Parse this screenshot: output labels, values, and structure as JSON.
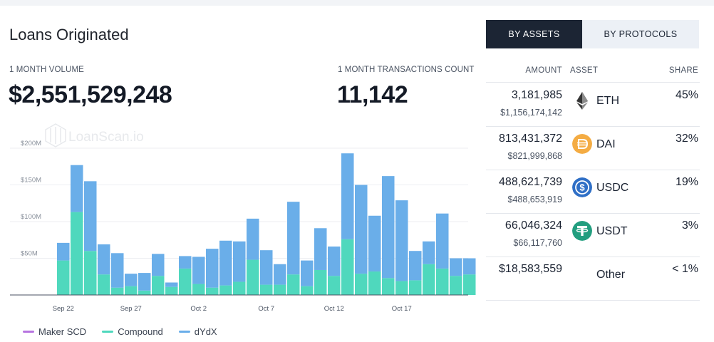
{
  "title": "Loans Originated",
  "stats": {
    "volume_label": "1 MONTH VOLUME",
    "volume_value": "$2,551,529,248",
    "tx_label": "1 MONTH TRANSACTIONS COUNT",
    "tx_value": "11,142"
  },
  "watermark": "LoanScan.io",
  "tabs": {
    "by_assets": "BY ASSETS",
    "by_protocols": "BY PROTOCOLS",
    "active": "by_assets"
  },
  "table": {
    "headers": {
      "amount": "AMOUNT",
      "asset": "ASSET",
      "share": "SHARE"
    },
    "rows": [
      {
        "amount": "3,181,985",
        "usd": "$1,156,174,142",
        "asset": "ETH",
        "icon": "eth-icon",
        "share": "45%"
      },
      {
        "amount": "813,431,372",
        "usd": "$821,999,868",
        "asset": "DAI",
        "icon": "dai-icon",
        "share": "32%"
      },
      {
        "amount": "488,621,739",
        "usd": "$488,653,919",
        "asset": "USDC",
        "icon": "usdc-icon",
        "share": "19%"
      },
      {
        "amount": "66,046,324",
        "usd": "$66,117,760",
        "asset": "USDT",
        "icon": "usdt-icon",
        "share": "3%"
      },
      {
        "amount": "$18,583,559",
        "usd": "",
        "asset": "Other",
        "icon": "",
        "share": "< 1%"
      }
    ]
  },
  "colors": {
    "maker": "#b774e0",
    "compound": "#4fd8bd",
    "dydx": "#6aaee9",
    "dark": "#1c2534",
    "dai": "#f4ac43",
    "usdc": "#2f6fc6",
    "usdt": "#229e7f",
    "eth": "#3b3b3b"
  },
  "chart_data": {
    "type": "bar",
    "stacked": true,
    "ylim": [
      0,
      200
    ],
    "yticks": [
      50,
      100,
      150,
      200
    ],
    "ytick_labels": [
      "$50M",
      "$100M",
      "$150M",
      "$200M"
    ],
    "xtick_labels": [
      {
        "index": 0,
        "label": "Sep 22"
      },
      {
        "index": 5,
        "label": "Sep 27"
      },
      {
        "index": 10,
        "label": "Oct 2"
      },
      {
        "index": 15,
        "label": "Oct 7"
      },
      {
        "index": 20,
        "label": "Oct 12"
      },
      {
        "index": 25,
        "label": "Oct 17"
      }
    ],
    "grid": true,
    "legend_position": "bottom-left",
    "series": [
      {
        "name": "Maker SCD",
        "values": [
          0,
          0,
          0,
          0,
          0,
          0,
          0,
          0,
          0,
          0,
          0,
          0,
          0,
          0,
          0,
          0,
          0,
          0,
          0,
          0,
          0,
          0,
          0,
          0,
          0,
          0,
          0,
          0,
          0,
          0,
          0
        ]
      },
      {
        "name": "Compound",
        "values": [
          47,
          113,
          60,
          28,
          10,
          12,
          6,
          26,
          11,
          36,
          15,
          10,
          13,
          18,
          48,
          14,
          14,
          28,
          12,
          34,
          26,
          76,
          29,
          32,
          23,
          19,
          20,
          42,
          36,
          26,
          28
        ]
      },
      {
        "name": "dYdX",
        "values": [
          24,
          64,
          95,
          41,
          47,
          17,
          24,
          30,
          6,
          17,
          37,
          53,
          61,
          55,
          56,
          47,
          28,
          99,
          35,
          57,
          40,
          117,
          121,
          76,
          139,
          110,
          40,
          31,
          75,
          24,
          22
        ]
      }
    ]
  }
}
